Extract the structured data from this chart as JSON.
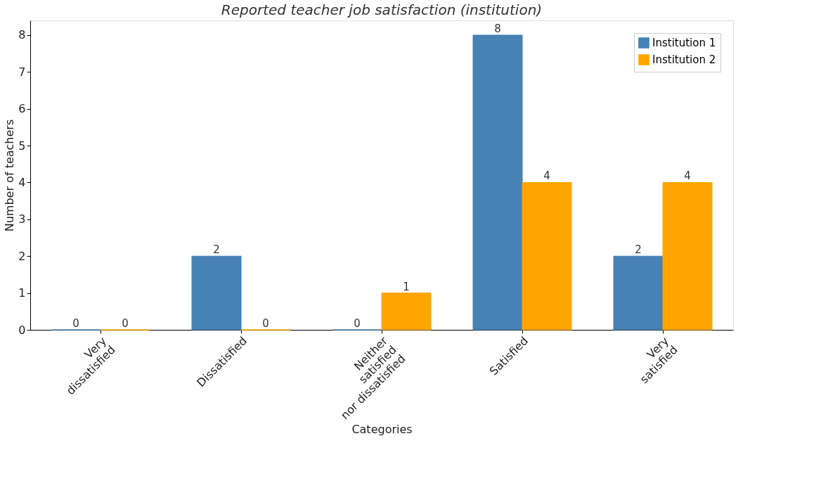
{
  "chart_data": {
    "type": "bar",
    "title": "Reported teacher job satisfaction (institution)",
    "xlabel": "Categories",
    "ylabel": "Number of teachers",
    "categories": [
      "Very\ndissatisfied",
      "Dissatisfied",
      "Neither\nsatisfied\nnor dissatisfied",
      "Satisfied",
      "Very\nsatisfied"
    ],
    "series": [
      {
        "name": "Institution 1",
        "color": "#4682b4",
        "values": [
          0,
          2,
          0,
          8,
          2
        ]
      },
      {
        "name": "Institution 2",
        "color": "#ffa500",
        "values": [
          0,
          0,
          1,
          4,
          4
        ]
      }
    ],
    "ylim": [
      0,
      8.4
    ],
    "yticks": [
      0,
      1,
      2,
      3,
      4,
      5,
      6,
      7,
      8
    ],
    "grid": false,
    "legend": "top right",
    "data_labels": true
  }
}
